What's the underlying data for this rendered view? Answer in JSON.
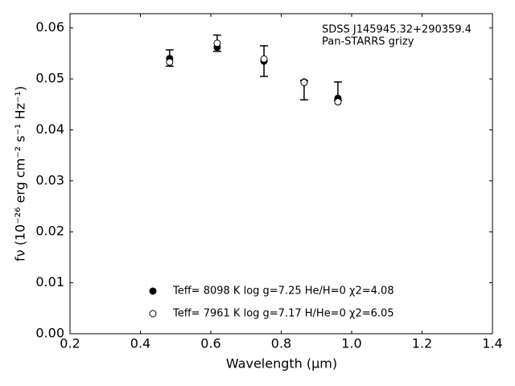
{
  "chart_data": {
    "type": "scatter",
    "annotations": [
      "SDSS J145945.32+290359.4",
      "Pan-STARRS grizy"
    ],
    "x_label": "Wavelength (μm)",
    "y_label": "fν (10⁻²⁶ erg cm⁻² s⁻¹ Hz⁻¹)",
    "xlim": [
      0.2,
      1.4
    ],
    "ylim": [
      0,
      0.0628
    ],
    "xticks": [
      0.2,
      0.4,
      0.6,
      0.8,
      {
        "value": 1,
        "label": "1.0"
      },
      1.2,
      1.4
    ],
    "yticks": [
      {
        "value": 0,
        "label": "0.00"
      },
      0.01,
      0.02,
      0.03,
      0.04,
      0.05,
      0.06
    ],
    "observed": {
      "x": [
        0.483,
        0.618,
        0.751,
        0.865,
        0.961
      ],
      "values": [
        0.0541,
        0.057,
        0.0535,
        0.0478,
        0.0476
      ],
      "errors": [
        0.0016,
        0.0016,
        0.003,
        0.0019,
        0.0018
      ],
      "color": "#000000"
    },
    "series": [
      {
        "name": "Teff=  8098 K  log g=7.25  He/H=0  χ2=4.08",
        "marker": "filled",
        "color": "#000000",
        "x": [
          0.483,
          0.618,
          0.751,
          0.865,
          0.961
        ],
        "values": [
          0.054,
          0.0562,
          0.0535,
          0.0494,
          0.0462
        ]
      },
      {
        "name": "Teff=  7961 K  log g=7.17  H/He=0  χ2=6.05",
        "marker": "open",
        "color": "#000000",
        "x": [
          0.483,
          0.618,
          0.751,
          0.865,
          0.961
        ],
        "values": [
          0.0533,
          0.057,
          0.0539,
          0.0493,
          0.0455
        ]
      }
    ]
  }
}
